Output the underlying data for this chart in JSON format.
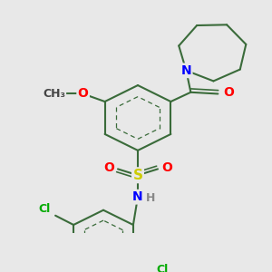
{
  "colors": {
    "bond": "#3a6b3a",
    "N": "#0000ff",
    "O": "#ff0000",
    "S": "#cccc00",
    "Cl": "#00aa00",
    "H": "#888888",
    "C": "#000000"
  },
  "fig_bg": "#e8e8e8",
  "bond_width": 1.5,
  "font_size": 9
}
